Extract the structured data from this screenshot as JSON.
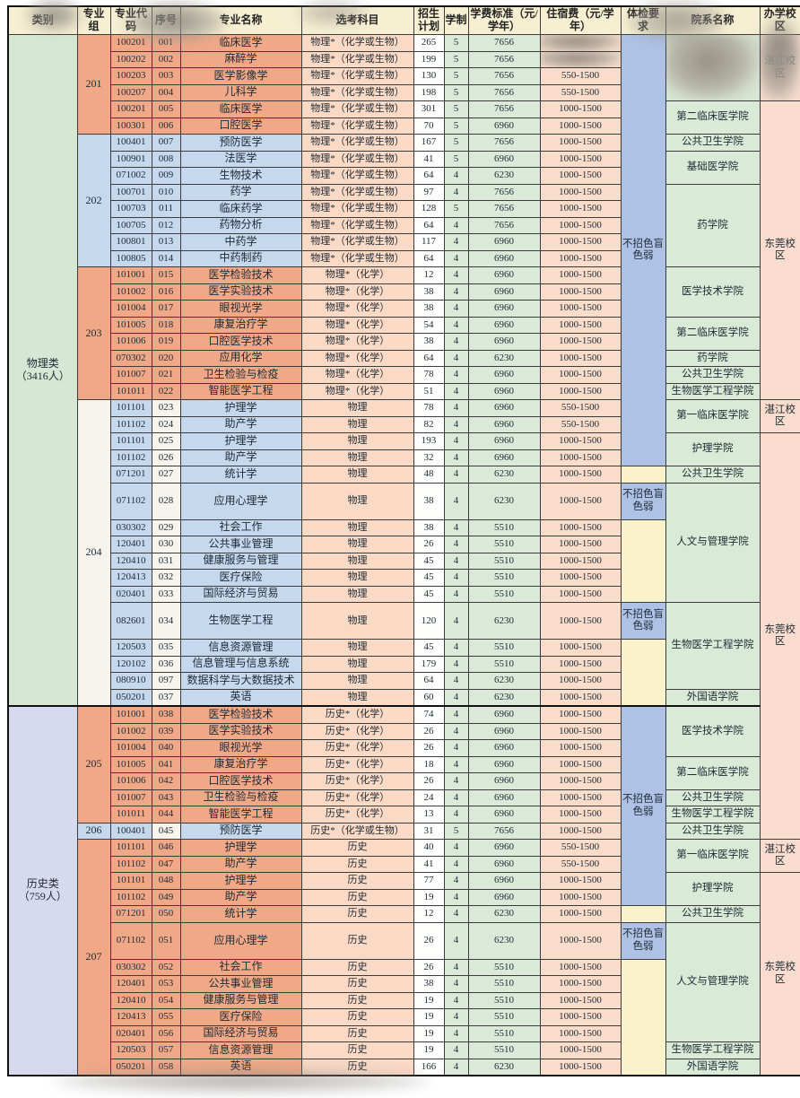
{
  "colors": {
    "header_bg": "#f6efd2",
    "group_orange": "#f0a887",
    "group_blue": "#c5d8ee",
    "category_physics_bg": "#d6e8d4",
    "category_history_bg": "#d7d9ef",
    "subjects_bg": "#fad9c5",
    "tuition_bg": "#dbead8",
    "housing_bg": "#f9dcca",
    "health_restriction_bg": "#adc2e5",
    "health_empty_bg": "#f9f2cb",
    "college_bg": "#d9ead6",
    "campus_bg": "#f9dccd",
    "border": "#3c3c3c"
  },
  "header": {
    "labels": [
      "类别",
      "专业组",
      "专业代码",
      "序号",
      "专业名称",
      "选考科目",
      "招生计划",
      "学制",
      "学费标准（元/学年）",
      "住宿费（元/学年）",
      "体检要求",
      "院系名称",
      "办学校区"
    ]
  },
  "row_fields": [
    "major_code",
    "seq_no",
    "major_name",
    "subjects",
    "plan",
    "years",
    "tuition",
    "housing",
    "style",
    "tall",
    "blur_housing"
  ],
  "rows": [
    [
      "100201",
      "001",
      "临床医学",
      "物理*（化学或生物）",
      "265",
      "5",
      "7656",
      "",
      "o",
      0,
      1
    ],
    [
      "100202",
      "002",
      "麻醉学",
      "物理*（化学或生物）",
      "199",
      "5",
      "7656",
      "",
      "o",
      0,
      1
    ],
    [
      "100203",
      "003",
      "医学影像学",
      "物理*（化学或生物）",
      "130",
      "5",
      "7656",
      "550-1500",
      "o",
      0,
      0
    ],
    [
      "100207",
      "004",
      "儿科学",
      "物理*（化学或生物）",
      "198",
      "5",
      "7656",
      "550-1500",
      "o",
      0,
      0
    ],
    [
      "100201",
      "005",
      "临床医学",
      "物理*（化学或生物）",
      "301",
      "5",
      "7656",
      "1000-1500",
      "o",
      0,
      0
    ],
    [
      "100301",
      "006",
      "口腔医学",
      "物理*（化学或生物）",
      "70",
      "5",
      "6960",
      "1000-1500",
      "o",
      0,
      0
    ],
    [
      "100401",
      "007",
      "预防医学",
      "物理*（化学或生物）",
      "167",
      "5",
      "7656",
      "1000-1500",
      "b",
      0,
      0
    ],
    [
      "100901",
      "008",
      "法医学",
      "物理*（化学或生物）",
      "41",
      "5",
      "6960",
      "1000-1500",
      "b",
      0,
      0
    ],
    [
      "071002",
      "009",
      "生物技术",
      "物理*（化学或生物）",
      "64",
      "4",
      "6230",
      "1000-1500",
      "b",
      0,
      0
    ],
    [
      "100701",
      "010",
      "药学",
      "物理*（化学或生物）",
      "97",
      "4",
      "7656",
      "1000-1500",
      "b",
      0,
      0
    ],
    [
      "100703",
      "011",
      "临床药学",
      "物理*（化学或生物）",
      "128",
      "5",
      "7656",
      "1000-1500",
      "b",
      0,
      0
    ],
    [
      "100705",
      "012",
      "药物分析",
      "物理*（化学或生物）",
      "64",
      "4",
      "7656",
      "1000-1500",
      "b",
      0,
      0
    ],
    [
      "100801",
      "013",
      "中药学",
      "物理*（化学或生物）",
      "117",
      "4",
      "6960",
      "1000-1500",
      "b",
      0,
      0
    ],
    [
      "100805",
      "014",
      "中药制药",
      "物理*（化学或生物）",
      "64",
      "4",
      "6960",
      "1000-1500",
      "b",
      0,
      0
    ],
    [
      "101001",
      "015",
      "医学检验技术",
      "物理*（化学）",
      "12",
      "4",
      "6960",
      "1000-1500",
      "o",
      0,
      0
    ],
    [
      "101002",
      "016",
      "医学实验技术",
      "物理*（化学）",
      "38",
      "4",
      "6960",
      "1000-1500",
      "o",
      0,
      0
    ],
    [
      "101004",
      "017",
      "眼视光学",
      "物理*（化学）",
      "38",
      "4",
      "6960",
      "1000-1500",
      "o",
      0,
      0
    ],
    [
      "101005",
      "018",
      "康复治疗学",
      "物理*（化学）",
      "54",
      "4",
      "6960",
      "1000-1500",
      "o",
      0,
      0
    ],
    [
      "101006",
      "019",
      "口腔医学技术",
      "物理*（化学）",
      "38",
      "4",
      "6960",
      "1000-1500",
      "o",
      0,
      0
    ],
    [
      "070302",
      "020",
      "应用化学",
      "物理*（化学）",
      "64",
      "4",
      "6230",
      "1000-1500",
      "o",
      0,
      0
    ],
    [
      "101007",
      "021",
      "卫生检验与检疫",
      "物理*（化学）",
      "78",
      "4",
      "6960",
      "1000-1500",
      "o",
      0,
      0
    ],
    [
      "101011",
      "022",
      "智能医学工程",
      "物理*（化学）",
      "51",
      "4",
      "6960",
      "1000-1500",
      "o",
      0,
      0
    ],
    [
      "101101",
      "023",
      "护理学",
      "物理",
      "78",
      "4",
      "6960",
      "550-1500",
      "b2",
      0,
      0
    ],
    [
      "101102",
      "024",
      "助产学",
      "物理",
      "82",
      "4",
      "6960",
      "550-1500",
      "b2",
      0,
      0
    ],
    [
      "101101",
      "025",
      "护理学",
      "物理",
      "193",
      "4",
      "6960",
      "1000-1500",
      "b2",
      0,
      0
    ],
    [
      "101102",
      "026",
      "助产学",
      "物理",
      "32",
      "4",
      "6960",
      "1000-1500",
      "b2",
      0,
      0
    ],
    [
      "071201",
      "027",
      "统计学",
      "物理",
      "48",
      "4",
      "6230",
      "1000-1500",
      "b2",
      0,
      0
    ],
    [
      "071102",
      "028",
      "应用心理学",
      "物理",
      "38",
      "4",
      "6230",
      "1000-1500",
      "b2",
      1,
      0
    ],
    [
      "030302",
      "029",
      "社会工作",
      "物理",
      "38",
      "4",
      "5510",
      "1000-1500",
      "b2",
      0,
      0
    ],
    [
      "120401",
      "030",
      "公共事业管理",
      "物理",
      "26",
      "4",
      "5510",
      "1000-1500",
      "b2",
      0,
      0
    ],
    [
      "120410",
      "031",
      "健康服务与管理",
      "物理",
      "45",
      "4",
      "5510",
      "1000-1500",
      "b2",
      0,
      0
    ],
    [
      "120413",
      "032",
      "医疗保险",
      "物理",
      "45",
      "4",
      "5510",
      "1000-1500",
      "b2",
      0,
      0
    ],
    [
      "020401",
      "033",
      "国际经济与贸易",
      "物理",
      "45",
      "4",
      "5510",
      "1000-1500",
      "b2",
      0,
      0
    ],
    [
      "082601",
      "034",
      "生物医学工程",
      "物理",
      "120",
      "4",
      "6230",
      "1000-1500",
      "b2",
      1,
      0
    ],
    [
      "120503",
      "035",
      "信息资源管理",
      "物理",
      "45",
      "4",
      "5510",
      "1000-1500",
      "b2",
      0,
      0
    ],
    [
      "120102",
      "036",
      "信息管理与信息系统",
      "物理",
      "179",
      "4",
      "5510",
      "1000-1500",
      "b2",
      0,
      0
    ],
    [
      "080910",
      "097",
      "数据科学与大数据技术",
      "物理",
      "64",
      "4",
      "6230",
      "1000-1500",
      "b2",
      0,
      0
    ],
    [
      "050201",
      "037",
      "英语",
      "物理",
      "60",
      "4",
      "6230",
      "1000-1500",
      "b2",
      0,
      0
    ],
    [
      "101001",
      "038",
      "医学检验技术",
      "历史*（化学）",
      "74",
      "4",
      "6960",
      "1000-1500",
      "o",
      0,
      0
    ],
    [
      "101002",
      "039",
      "医学实验技术",
      "历史*（化学）",
      "26",
      "4",
      "6960",
      "1000-1500",
      "o",
      0,
      0
    ],
    [
      "101004",
      "040",
      "眼视光学",
      "历史*（化学）",
      "26",
      "4",
      "6960",
      "1000-1500",
      "o",
      0,
      0
    ],
    [
      "101005",
      "041",
      "康复治疗学",
      "历史*（化学）",
      "18",
      "4",
      "6960",
      "1000-1500",
      "o",
      0,
      0
    ],
    [
      "101006",
      "042",
      "口腔医学技术",
      "历史*（化学）",
      "26",
      "4",
      "6960",
      "1000-1500",
      "o",
      0,
      0
    ],
    [
      "101007",
      "043",
      "卫生检验与检疫",
      "历史*（化学）",
      "24",
      "4",
      "6960",
      "1000-1500",
      "o",
      0,
      0
    ],
    [
      "101011",
      "044",
      "智能医学工程",
      "历史*（化学）",
      "13",
      "4",
      "6960",
      "1000-1500",
      "o",
      0,
      0
    ],
    [
      "100401",
      "045",
      "预防医学",
      "历史*（化学或生物）",
      "31",
      "5",
      "7656",
      "1000-1500",
      "b2",
      0,
      0
    ],
    [
      "101101",
      "046",
      "护理学",
      "历史",
      "40",
      "4",
      "6960",
      "550-1500",
      "o",
      0,
      0
    ],
    [
      "101102",
      "047",
      "助产学",
      "历史",
      "41",
      "4",
      "6960",
      "550-1500",
      "o",
      0,
      0
    ],
    [
      "101101",
      "048",
      "护理学",
      "历史",
      "77",
      "4",
      "6960",
      "1000-1500",
      "o",
      0,
      0
    ],
    [
      "101102",
      "049",
      "助产学",
      "历史",
      "19",
      "4",
      "6960",
      "1000-1500",
      "o",
      0,
      0
    ],
    [
      "071201",
      "050",
      "统计学",
      "历史",
      "12",
      "4",
      "6230",
      "1000-1500",
      "o",
      0,
      0
    ],
    [
      "071102",
      "051",
      "应用心理学",
      "历史",
      "26",
      "4",
      "6230",
      "1000-1500",
      "o",
      1,
      0
    ],
    [
      "030302",
      "052",
      "社会工作",
      "历史",
      "26",
      "4",
      "5510",
      "1000-1500",
      "o",
      0,
      0
    ],
    [
      "120401",
      "053",
      "公共事业管理",
      "历史",
      "38",
      "4",
      "5510",
      "1000-1500",
      "o",
      0,
      0
    ],
    [
      "120410",
      "054",
      "健康服务与管理",
      "历史",
      "19",
      "4",
      "5510",
      "1000-1500",
      "o",
      0,
      0
    ],
    [
      "120413",
      "055",
      "医疗保险",
      "历史",
      "19",
      "4",
      "5510",
      "1000-1500",
      "o",
      0,
      0
    ],
    [
      "020401",
      "056",
      "国际经济与贸易",
      "历史",
      "19",
      "4",
      "5510",
      "1000-1500",
      "o",
      0,
      0
    ],
    [
      "120503",
      "057",
      "信息资源管理",
      "历史",
      "19",
      "4",
      "5510",
      "1000-1500",
      "o",
      0,
      0
    ],
    [
      "050201",
      "058",
      "英语",
      "历史",
      "166",
      "4",
      "6230",
      "1000-1500",
      "o",
      0,
      0
    ]
  ],
  "merges": {
    "category": [
      {
        "row": 0,
        "span": 38,
        "label": "物理类",
        "sub": "（3416人）",
        "cls": "cat-green"
      },
      {
        "row": 38,
        "span": 21,
        "label": "历史类",
        "sub": "（759人）",
        "cls": "cat-lav"
      }
    ],
    "group": [
      {
        "row": 0,
        "span": 6,
        "label": "201",
        "cls": "bg-orange"
      },
      {
        "row": 6,
        "span": 8,
        "label": "202",
        "cls": "bg-blue"
      },
      {
        "row": 14,
        "span": 8,
        "label": "203",
        "cls": "bg-orange"
      },
      {
        "row": 22,
        "span": 16,
        "label": "204",
        "cls": "bg-pale"
      },
      {
        "row": 38,
        "span": 7,
        "label": "205",
        "cls": "bg-orange"
      },
      {
        "row": 45,
        "span": 1,
        "label": "206",
        "cls": "bg-blue"
      },
      {
        "row": 46,
        "span": 13,
        "label": "207",
        "cls": "bg-orange"
      }
    ],
    "health": [
      {
        "row": 0,
        "span": 26,
        "label": "不招色盲色弱",
        "cls": "health-blue"
      },
      {
        "row": 26,
        "span": 1,
        "label": "",
        "cls": "health-yellow"
      },
      {
        "row": 27,
        "span": 1,
        "label": "不招色盲色弱",
        "cls": "health-blue"
      },
      {
        "row": 28,
        "span": 5,
        "label": "",
        "cls": "health-yellow"
      },
      {
        "row": 33,
        "span": 1,
        "label": "不招色盲色弱",
        "cls": "health-blue"
      },
      {
        "row": 34,
        "span": 4,
        "label": "",
        "cls": "health-yellow"
      },
      {
        "row": 38,
        "span": 12,
        "label": "不招色盲色弱",
        "cls": "health-blue"
      },
      {
        "row": 50,
        "span": 1,
        "label": "",
        "cls": "health-yellow"
      },
      {
        "row": 51,
        "span": 1,
        "label": "不招色盲色弱",
        "cls": "health-blue"
      },
      {
        "row": 52,
        "span": 7,
        "label": "",
        "cls": "health-yellow"
      }
    ],
    "college": [
      {
        "row": 0,
        "span": 4,
        "label": "",
        "blur": 1
      },
      {
        "row": 4,
        "span": 2,
        "label": "第二临床医学院"
      },
      {
        "row": 6,
        "span": 1,
        "label": "公共卫生学院"
      },
      {
        "row": 7,
        "span": 2,
        "label": "基础医学院"
      },
      {
        "row": 9,
        "span": 5,
        "label": "药学院"
      },
      {
        "row": 14,
        "span": 3,
        "label": "医学技术学院"
      },
      {
        "row": 17,
        "span": 2,
        "label": "第二临床医学院"
      },
      {
        "row": 19,
        "span": 1,
        "label": "药学院"
      },
      {
        "row": 20,
        "span": 1,
        "label": "公共卫生学院"
      },
      {
        "row": 21,
        "span": 1,
        "label": "生物医学工程学院"
      },
      {
        "row": 22,
        "span": 2,
        "label": "第一临床医学院"
      },
      {
        "row": 24,
        "span": 2,
        "label": "护理学院"
      },
      {
        "row": 26,
        "span": 1,
        "label": "公共卫生学院"
      },
      {
        "row": 27,
        "span": 6,
        "label": "人文与管理学院"
      },
      {
        "row": 33,
        "span": 4,
        "label": "生物医学工程学院"
      },
      {
        "row": 37,
        "span": 1,
        "label": "外国语学院"
      },
      {
        "row": 38,
        "span": 3,
        "label": "医学技术学院"
      },
      {
        "row": 41,
        "span": 2,
        "label": "第二临床医学院"
      },
      {
        "row": 43,
        "span": 1,
        "label": "公共卫生学院"
      },
      {
        "row": 44,
        "span": 1,
        "label": "生物医学工程学院"
      },
      {
        "row": 45,
        "span": 1,
        "label": "公共卫生学院"
      },
      {
        "row": 46,
        "span": 2,
        "label": "第一临床医学院"
      },
      {
        "row": 48,
        "span": 2,
        "label": "护理学院"
      },
      {
        "row": 50,
        "span": 1,
        "label": "公共卫生学院"
      },
      {
        "row": 51,
        "span": 6,
        "label": "人文与管理学院"
      },
      {
        "row": 57,
        "span": 1,
        "label": "生物医学工程学院"
      },
      {
        "row": 58,
        "span": 1,
        "label": "外国语学院"
      }
    ],
    "campus": [
      {
        "row": 0,
        "span": 4,
        "label": "湛江校区",
        "blur": 1
      },
      {
        "row": 4,
        "span": 18,
        "label": "东莞校区"
      },
      {
        "row": 22,
        "span": 2,
        "label": "湛江校区"
      },
      {
        "row": 24,
        "span": 22,
        "label": "东莞校区"
      },
      {
        "row": 46,
        "span": 2,
        "label": "湛江校区"
      },
      {
        "row": 48,
        "span": 11,
        "label": "东莞校区"
      }
    ]
  }
}
